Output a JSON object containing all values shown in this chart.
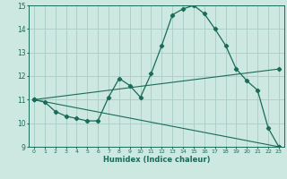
{
  "xlabel": "Humidex (Indice chaleur)",
  "bg_color": "#cce8e0",
  "grid_color": "#aaccc4",
  "line_color": "#1a6b5a",
  "xlim": [
    -0.5,
    23.5
  ],
  "ylim": [
    9,
    15
  ],
  "yticks": [
    9,
    10,
    11,
    12,
    13,
    14,
    15
  ],
  "xticks": [
    0,
    1,
    2,
    3,
    4,
    5,
    6,
    7,
    8,
    9,
    10,
    11,
    12,
    13,
    14,
    15,
    16,
    17,
    18,
    19,
    20,
    21,
    22,
    23
  ],
  "series1_x": [
    0,
    1,
    2,
    3,
    4,
    5,
    6,
    7,
    8,
    9,
    10,
    11,
    12,
    13,
    14,
    15,
    16,
    17,
    18,
    19,
    20,
    21,
    22,
    23
  ],
  "series1_y": [
    11.0,
    10.9,
    10.5,
    10.3,
    10.2,
    10.1,
    10.1,
    11.1,
    11.9,
    11.6,
    11.1,
    12.1,
    13.3,
    14.6,
    14.85,
    15.0,
    14.65,
    14.0,
    13.3,
    12.3,
    11.8,
    11.4,
    9.8,
    9.0
  ],
  "series2_x": [
    0,
    23
  ],
  "series2_y": [
    11.0,
    12.3
  ],
  "series3_x": [
    0,
    23
  ],
  "series3_y": [
    11.0,
    9.0
  ]
}
